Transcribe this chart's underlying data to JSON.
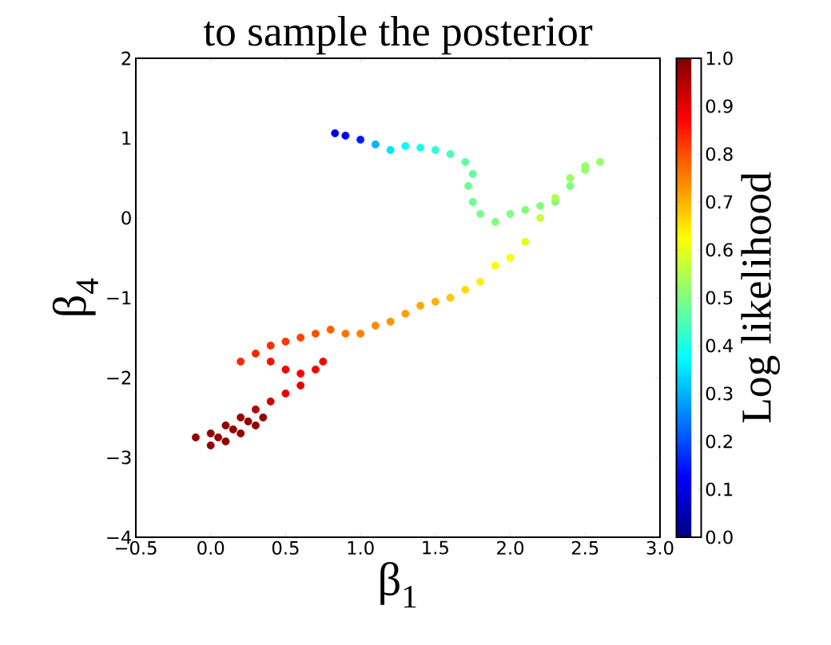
{
  "chart_data": {
    "type": "scatter",
    "title": "to sample the posterior",
    "xlabel": "β$_{1}$",
    "ylabel": "β$_{4}$",
    "clabel": "Log likelihood",
    "marker": "circle",
    "x": [
      0.83,
      0.9,
      1.0,
      1.1,
      1.2,
      1.3,
      1.4,
      1.5,
      1.6,
      1.7,
      1.75,
      1.72,
      1.75,
      1.8,
      1.9,
      2.0,
      2.1,
      2.2,
      2.3,
      2.4,
      2.5,
      2.6,
      2.5,
      2.4,
      2.3,
      2.2,
      2.1,
      2.0,
      1.9,
      1.8,
      1.7,
      1.6,
      1.5,
      1.4,
      1.3,
      1.2,
      1.1,
      1.0,
      0.9,
      0.8,
      0.7,
      0.6,
      0.5,
      0.4,
      0.3,
      0.2,
      0.4,
      0.5,
      0.6,
      0.7,
      0.75,
      0.6,
      0.5,
      0.4,
      0.3,
      0.2,
      0.1,
      0.0,
      -0.1,
      0.0,
      0.1,
      0.2,
      0.3,
      0.35,
      0.25,
      0.15,
      0.05
    ],
    "values": [
      1.06,
      1.03,
      0.98,
      0.92,
      0.85,
      0.9,
      0.88,
      0.85,
      0.8,
      0.7,
      0.55,
      0.4,
      0.2,
      0.05,
      -0.05,
      0.05,
      0.1,
      0.15,
      0.2,
      0.4,
      0.6,
      0.7,
      0.65,
      0.5,
      0.25,
      0.0,
      -0.3,
      -0.5,
      -0.6,
      -0.8,
      -0.9,
      -1.0,
      -1.05,
      -1.1,
      -1.2,
      -1.3,
      -1.35,
      -1.45,
      -1.45,
      -1.4,
      -1.45,
      -1.5,
      -1.55,
      -1.6,
      -1.7,
      -1.8,
      -1.8,
      -1.9,
      -1.95,
      -1.9,
      -1.8,
      -2.1,
      -2.2,
      -2.3,
      -2.4,
      -2.5,
      -2.6,
      -2.7,
      -2.75,
      -2.85,
      -2.8,
      -2.7,
      -2.6,
      -2.5,
      -2.55,
      -2.65,
      -2.75
    ],
    "cvalues": [
      0.1,
      0.12,
      0.15,
      0.3,
      0.35,
      0.38,
      0.4,
      0.42,
      0.45,
      0.47,
      0.47,
      0.48,
      0.48,
      0.49,
      0.5,
      0.5,
      0.5,
      0.5,
      0.5,
      0.5,
      0.52,
      0.52,
      0.52,
      0.53,
      0.55,
      0.57,
      0.6,
      0.62,
      0.63,
      0.64,
      0.66,
      0.68,
      0.7,
      0.71,
      0.72,
      0.73,
      0.74,
      0.75,
      0.76,
      0.78,
      0.8,
      0.81,
      0.82,
      0.83,
      0.84,
      0.84,
      0.86,
      0.88,
      0.88,
      0.88,
      0.88,
      0.9,
      0.9,
      0.92,
      0.95,
      0.97,
      0.98,
      0.98,
      0.98,
      0.98,
      0.98,
      0.98,
      0.98,
      0.98,
      0.98,
      0.98,
      0.98
    ],
    "xlim": [
      -0.5,
      3.0
    ],
    "ylim": [
      -4,
      2
    ],
    "xticks": [
      {
        "value": -0.5,
        "label": "−0.5"
      },
      {
        "value": 0.0,
        "label": "0.0"
      },
      {
        "value": 0.5,
        "label": "0.5"
      },
      {
        "value": 1.0,
        "label": "1.0"
      },
      {
        "value": 1.5,
        "label": "1.5"
      },
      {
        "value": 2.0,
        "label": "2.0"
      },
      {
        "value": 2.5,
        "label": "2.5"
      },
      {
        "value": 3.0,
        "label": "3.0"
      }
    ],
    "yticks": [
      {
        "value": -4,
        "label": "−4"
      },
      {
        "value": -3,
        "label": "−3"
      },
      {
        "value": -2,
        "label": "−2"
      },
      {
        "value": -1,
        "label": "−1"
      },
      0,
      1,
      2
    ],
    "clim": [
      0.0,
      1.0
    ],
    "cticks": [
      {
        "value": 0.0,
        "label": "0.0"
      },
      {
        "value": 0.1,
        "label": "0.1"
      },
      {
        "value": 0.2,
        "label": "0.2"
      },
      {
        "value": 0.3,
        "label": "0.3"
      },
      {
        "value": 0.4,
        "label": "0.4"
      },
      {
        "value": 0.5,
        "label": "0.5"
      },
      {
        "value": 0.6,
        "label": "0.6"
      },
      {
        "value": 0.7,
        "label": "0.7"
      },
      {
        "value": 0.8,
        "label": "0.8"
      },
      {
        "value": 0.9,
        "label": "0.9"
      },
      {
        "value": 1.0,
        "label": "1.0"
      }
    ]
  }
}
